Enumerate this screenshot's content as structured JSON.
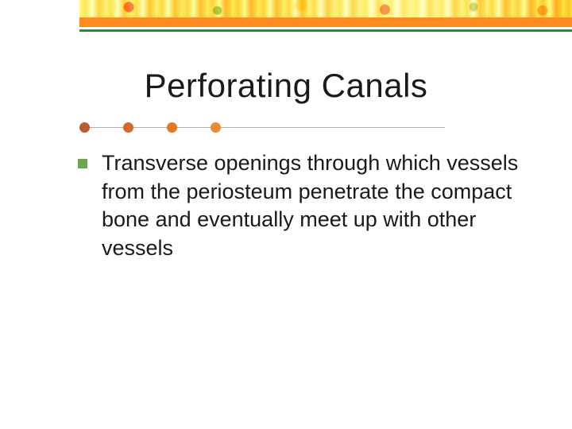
{
  "colors": {
    "orange_bar": "#ff8a1f",
    "green_bar": "#2e8b2e",
    "divider_line": "#b0b0b0",
    "dot1": "#b85c2e",
    "dot2": "#d46a2a",
    "dot3": "#e07828",
    "dot4": "#ec8a30",
    "bullet_marker": "#6aa84f",
    "text": "#1a1a1a",
    "background": "#ffffff"
  },
  "slide": {
    "title": "Perforating Canals",
    "title_fontsize": 42,
    "bullets": [
      {
        "text": "Transverse openings through which vessels from the periosteum penetrate the compact bone and eventually meet up with other vessels"
      }
    ],
    "body_fontsize": 27
  }
}
